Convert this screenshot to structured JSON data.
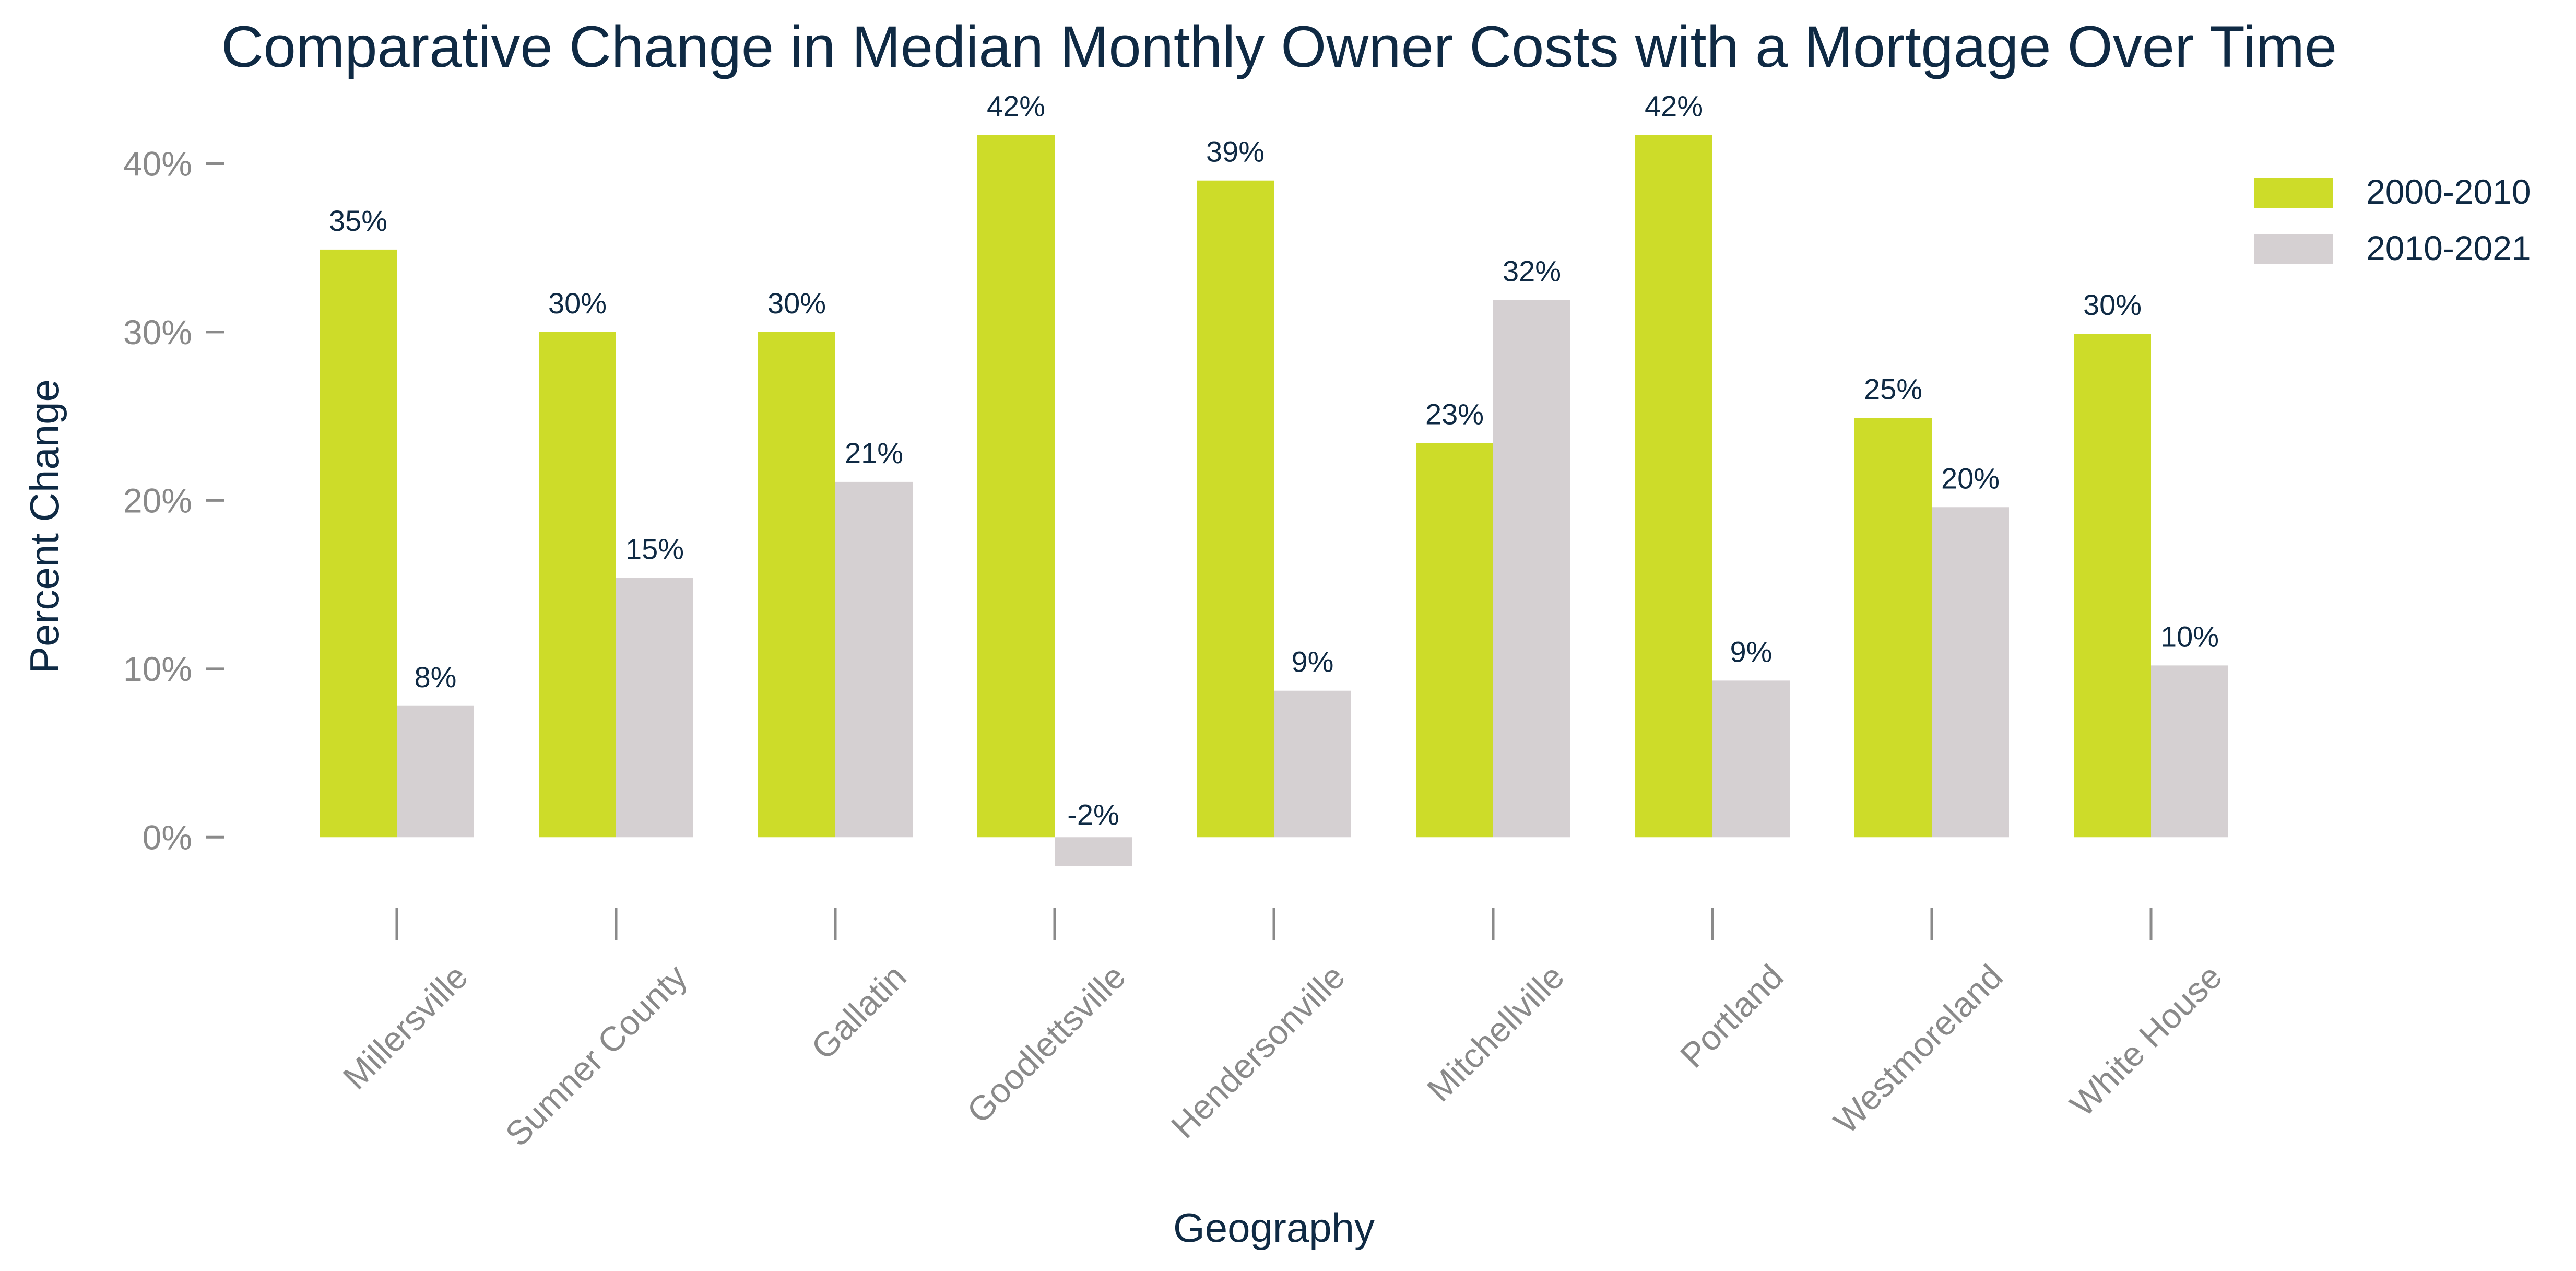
{
  "chart_data": {
    "type": "bar",
    "title": "Comparative Change in Median Monthly Owner Costs with a Mortgage Over Time",
    "xlabel": "Geography",
    "ylabel": "Percent Change",
    "categories": [
      "Millersville",
      "Sumner County",
      "Gallatin",
      "Goodlettsville",
      "Hendersonville",
      "Mitchellville",
      "Portland",
      "Westmoreland",
      "White House"
    ],
    "series": [
      {
        "name": "2000-2010",
        "color": "#cddc29",
        "values": [
          34.9,
          30.0,
          30.0,
          41.7,
          39.0,
          23.4,
          41.7,
          24.9,
          29.9
        ],
        "labels": [
          "35%",
          "30%",
          "30%",
          "42%",
          "39%",
          "23%",
          "42%",
          "25%",
          "30%"
        ]
      },
      {
        "name": "2010-2021",
        "color": "#d5d0d2",
        "values": [
          7.8,
          15.4,
          21.1,
          -1.7,
          8.7,
          31.9,
          9.3,
          19.6,
          10.2
        ],
        "labels": [
          "8%",
          "15%",
          "21%",
          "-2%",
          "9%",
          "32%",
          "9%",
          "20%",
          "10%"
        ]
      }
    ],
    "yticks": [
      0,
      10,
      20,
      30,
      40
    ],
    "ytick_labels": [
      "0%",
      "10%",
      "20%",
      "30%",
      "40%"
    ],
    "ylim": [
      -3,
      46
    ],
    "grid": false,
    "legend_position": "top-right"
  }
}
